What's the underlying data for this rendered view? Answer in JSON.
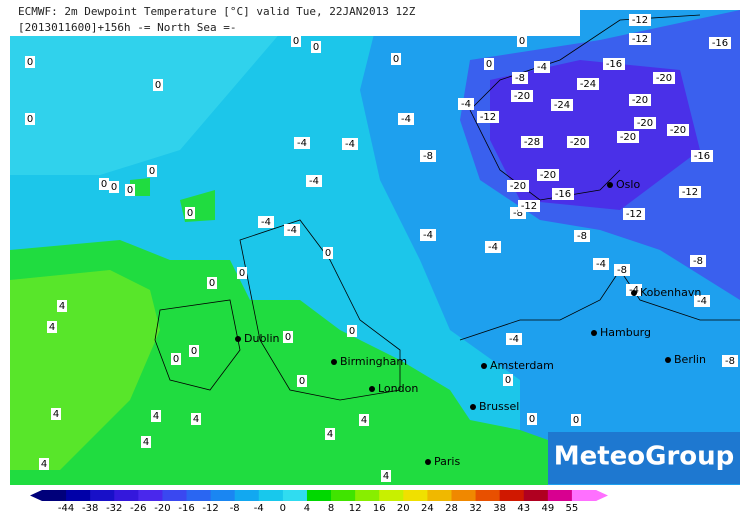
{
  "header": {
    "line1": "ECMWF: 2m Dewpoint Temperature [°C] valid Tue, 22JAN2013 12Z",
    "line2": "[2013011600]+156h  -= North Sea =-"
  },
  "logo": "MeteoGroup",
  "cities": [
    "Oslo",
    "Kobenhavn",
    "Hamburg",
    "Berlin",
    "Amsterdam",
    "Dublin",
    "Birmingham",
    "London",
    "Brussel",
    "Paris"
  ],
  "contour_labels": [
    "0",
    "0",
    "0",
    "0",
    "0",
    "0",
    "0",
    "0",
    "0",
    "0",
    "0",
    "0",
    "0",
    "-4",
    "-8",
    "-20",
    "-4",
    "-12",
    "-4",
    "-4",
    "-4",
    "-8",
    "-28",
    "-20",
    "-20",
    "-16",
    "-20",
    "-8",
    "-12",
    "-12",
    "-12",
    "-16",
    "-20",
    "-20",
    "-20",
    "-24",
    "-24",
    "-20",
    "-12",
    "-12",
    "-16",
    "-16",
    "-20",
    "-4",
    "-4",
    "-4",
    "-4",
    "-4",
    "-8",
    "-4",
    "-8",
    "-8",
    "-4",
    "-4",
    "-8",
    "-4",
    "0",
    "0",
    "0",
    "0",
    "0",
    "0",
    "0",
    "0",
    "0",
    "0",
    "0",
    "4",
    "4",
    "4",
    "4",
    "4",
    "4",
    "4",
    "4",
    "4",
    "4"
  ],
  "legend": {
    "labels": [
      "-44",
      "-38",
      "-32",
      "-26",
      "-20",
      "-16",
      "-12",
      "-8",
      "-4",
      "0",
      "4",
      "8",
      "12",
      "16",
      "20",
      "24",
      "28",
      "32",
      "38",
      "43",
      "49",
      "55"
    ],
    "colors": [
      "#00007a",
      "#0000a8",
      "#1810c8",
      "#3418dc",
      "#4a28ec",
      "#3a48f0",
      "#2a66f2",
      "#1a86f2",
      "#12a8f0",
      "#18c8ec",
      "#30dcf0",
      "#00d800",
      "#40e400",
      "#88ee00",
      "#c8f000",
      "#f0e000",
      "#f0b800",
      "#f08800",
      "#e85000",
      "#d01800",
      "#b00020",
      "#d80090",
      "#ff70ff"
    ]
  }
}
